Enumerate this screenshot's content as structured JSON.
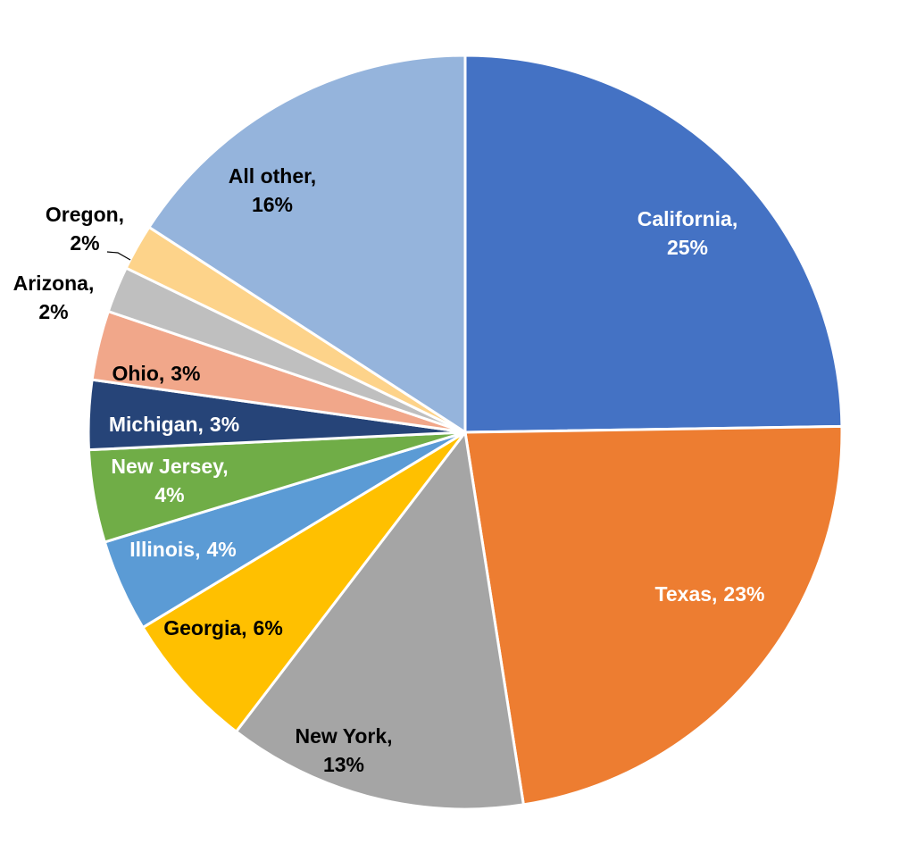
{
  "chart_data": {
    "type": "pie",
    "categories": [
      "California,",
      "Texas,",
      "New York,",
      "Georgia,",
      "Illinois,",
      "New Jersey,",
      "Michigan,",
      "Ohio,",
      "Arizona,",
      "Oregon,",
      "All other,"
    ],
    "values": [
      25,
      23,
      13,
      6,
      4,
      4,
      3,
      3,
      2,
      2,
      16
    ],
    "value_labels": [
      "25%",
      "23%",
      "13%",
      "6%",
      "4%",
      "4%",
      "3%",
      "3%",
      "2%",
      "2%",
      "16%"
    ],
    "colors": [
      "#4472c4",
      "#ed7d31",
      "#a5a5a5",
      "#ffc000",
      "#5b9bd5",
      "#70ad47",
      "#264478",
      "#f1a78a",
      "#bfbfbf",
      "#fdd38a",
      "#95b4dc"
    ]
  }
}
